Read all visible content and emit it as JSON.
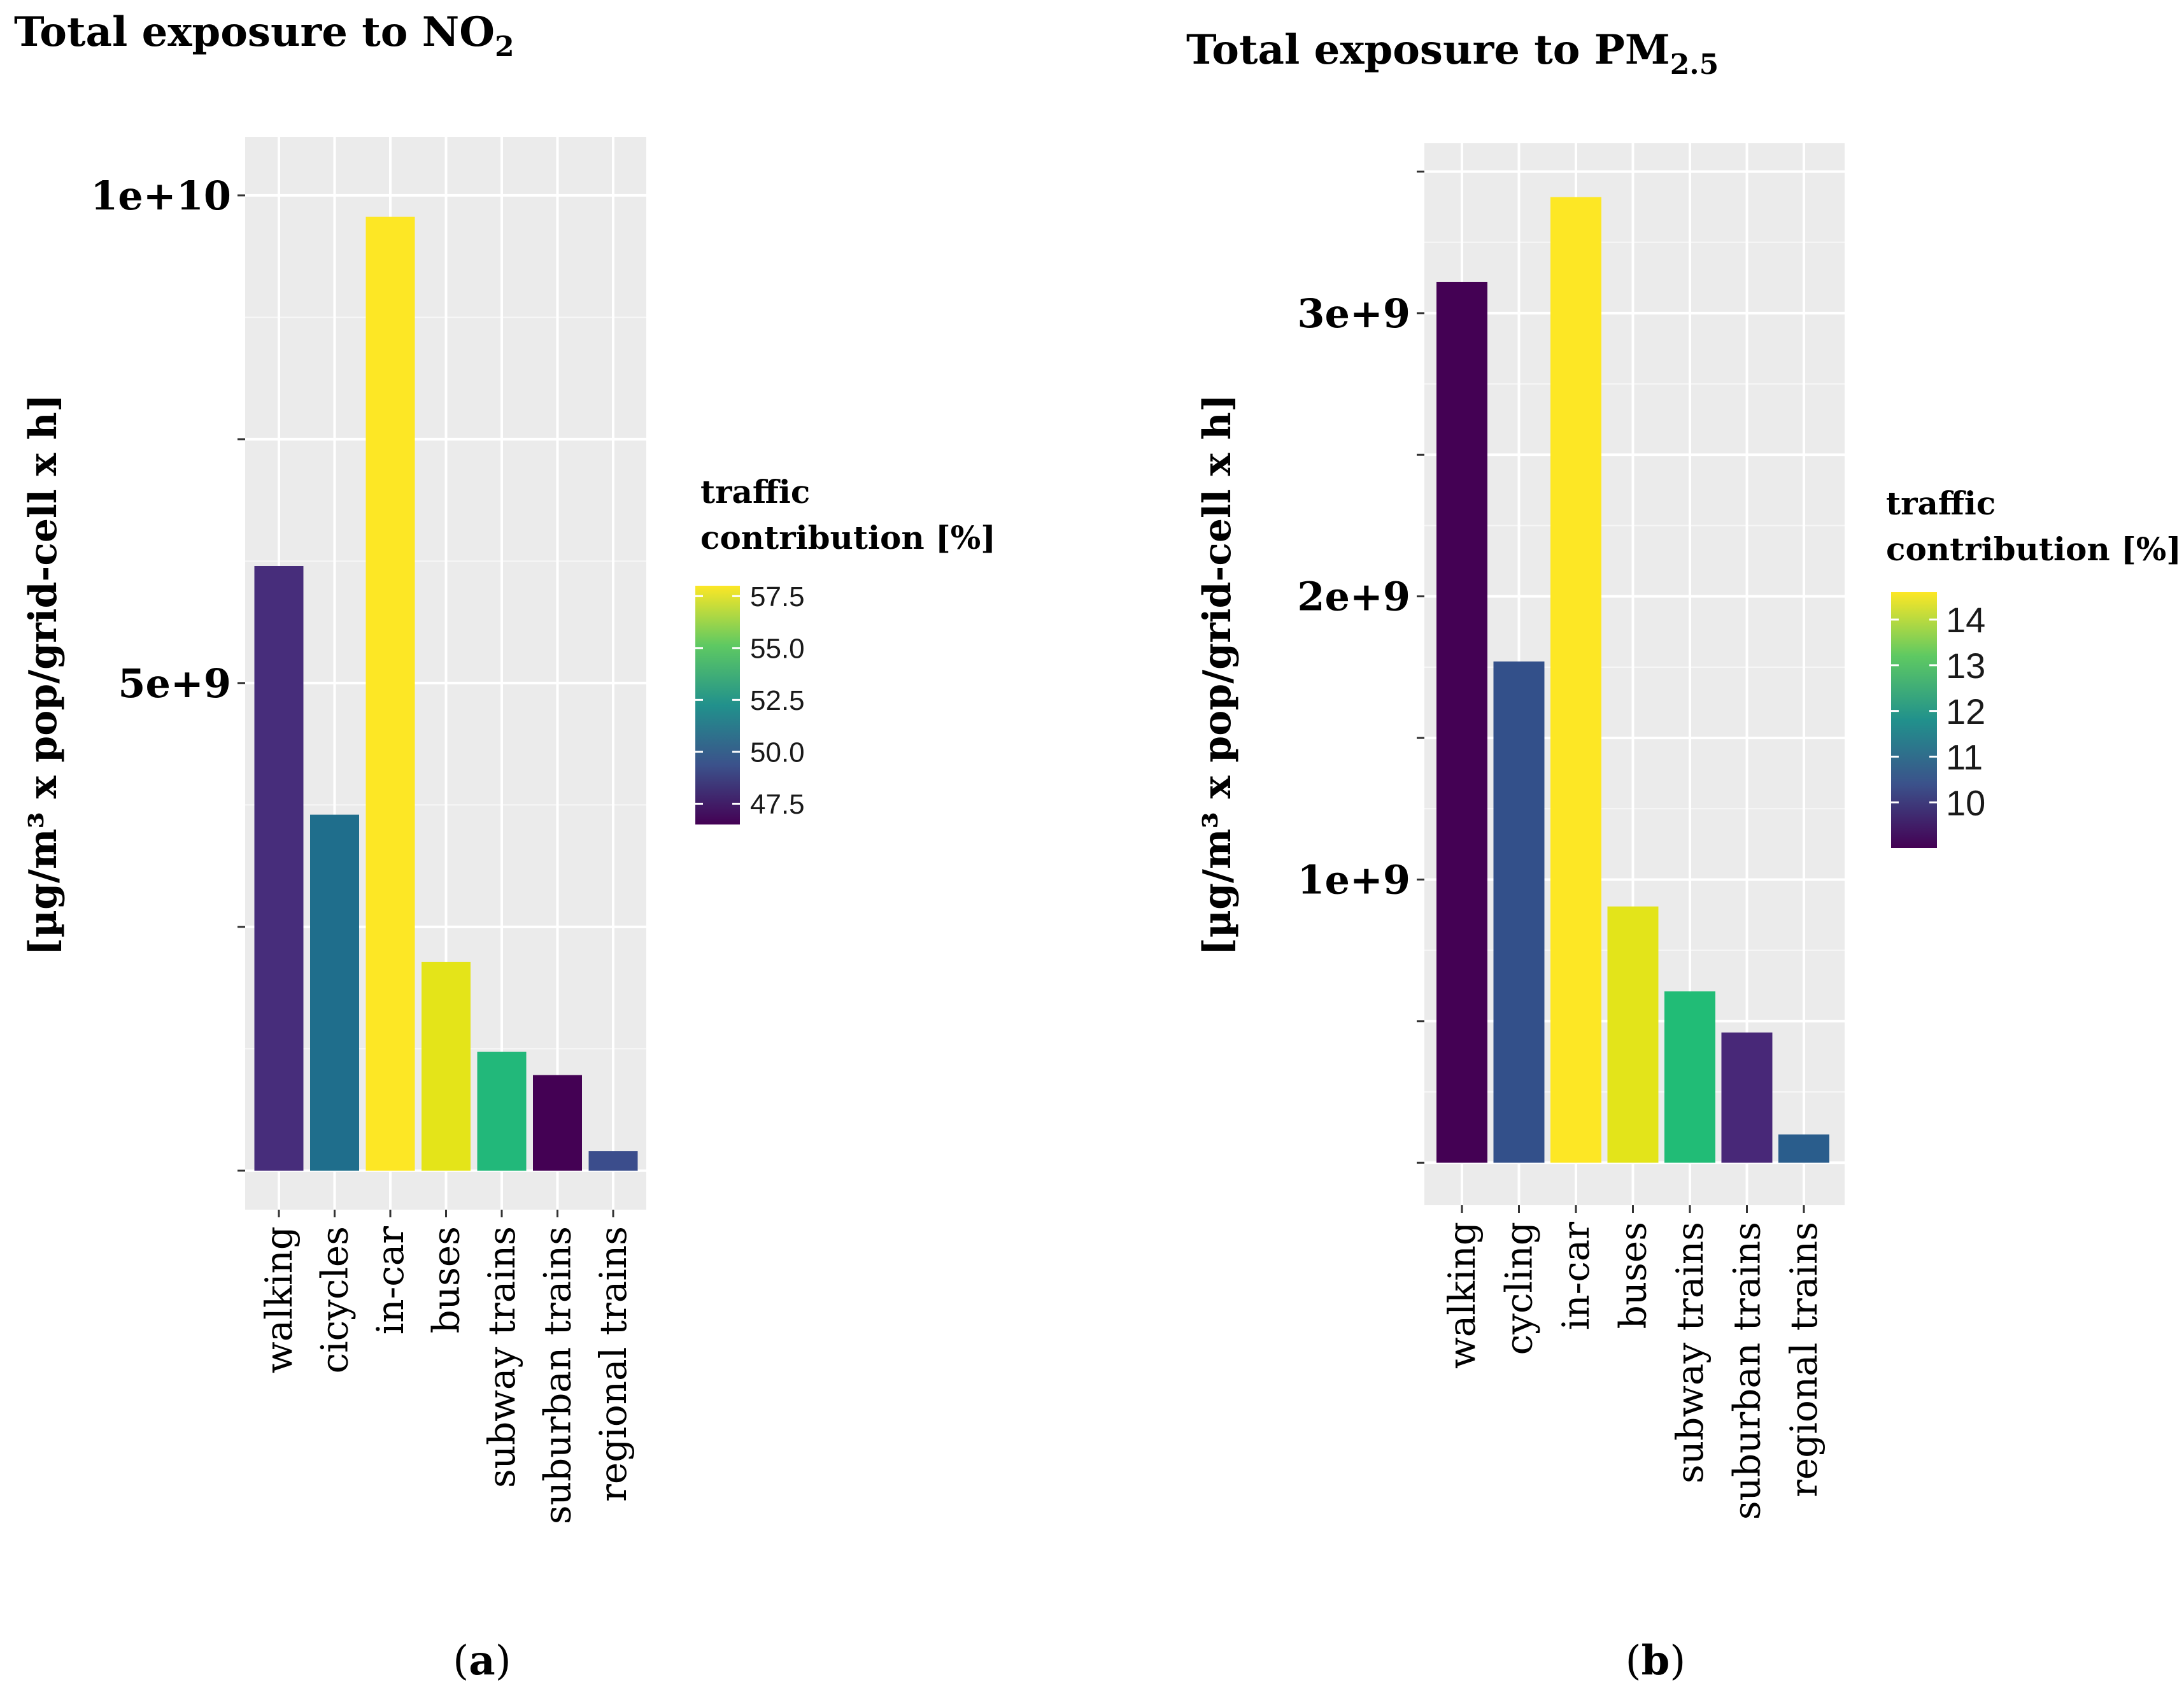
{
  "chart_data": [
    {
      "type": "bar",
      "panel_label": "a",
      "title": "Total exposure to NO",
      "title_subscript": "2",
      "ylabel": "[µg/m³ x pop/grid-cell x h]",
      "xlabel": "",
      "ylim": [
        -400000000,
        10600000000
      ],
      "yticks": [
        0,
        2500000000,
        5000000000,
        7500000000,
        10000000000
      ],
      "ytick_labels": [
        "",
        "",
        "5e+9",
        "",
        "1e+10"
      ],
      "grid": true,
      "categories": [
        "walking",
        "cicycles",
        "in-car",
        "buses",
        "subway trains",
        "suburban trains",
        "regional trains"
      ],
      "values": [
        6200000000,
        3650000000,
        9780000000,
        2140000000,
        1220000000,
        980000000,
        200000000
      ],
      "color_values": [
        48.5,
        50.9,
        57.9,
        57.1,
        54.4,
        46.5,
        49.3
      ],
      "colors": [
        "#472d7b",
        "#1f6e8c",
        "#fde725",
        "#e4e419",
        "#22b87a",
        "#440154",
        "#3b4d8c"
      ],
      "legend": {
        "title_line1": "traffic",
        "title_line2": "contribution [%]",
        "placement": "right",
        "range": [
          46.5,
          58.0
        ],
        "ticks": [
          47.5,
          50.0,
          52.5,
          55.0,
          57.5
        ],
        "tick_labels": [
          "47.5",
          "50.0",
          "52.5",
          "55.0",
          "57.5"
        ]
      }
    },
    {
      "type": "bar",
      "panel_label": "b",
      "title": "Total exposure to PM",
      "title_subscript": "2.5",
      "ylabel": "[µg/m³ x pop/grid-cell x h]",
      "xlabel": "",
      "ylim": [
        -150000000,
        3600000000
      ],
      "yticks": [
        0,
        500000000,
        1000000000,
        1500000000,
        2000000000,
        2500000000,
        3000000000,
        3500000000
      ],
      "ytick_labels": [
        "",
        "",
        "1e+9",
        "",
        "2e+9",
        "",
        "3e+9",
        ""
      ],
      "grid": true,
      "categories": [
        "walking",
        "cycling",
        "in-car",
        "buses",
        "subway trains",
        "suburban trains",
        "regional trains"
      ],
      "values": [
        3110000000,
        1770000000,
        3410000000,
        905000000,
        605000000,
        460000000,
        100000000
      ],
      "color_values": [
        9.2,
        10.5,
        14.5,
        14.2,
        12.7,
        9.6,
        11.2
      ],
      "colors": [
        "#440154",
        "#33508a",
        "#fde725",
        "#e3e41a",
        "#21bc76",
        "#482878",
        "#2a5d8c"
      ],
      "legend": {
        "title_line1": "traffic",
        "title_line2": "contribution [%]",
        "placement": "right",
        "range": [
          9.0,
          14.6
        ],
        "ticks": [
          10,
          11,
          12,
          13,
          14
        ],
        "tick_labels": [
          "10",
          "11",
          "12",
          "13",
          "14"
        ]
      }
    }
  ]
}
